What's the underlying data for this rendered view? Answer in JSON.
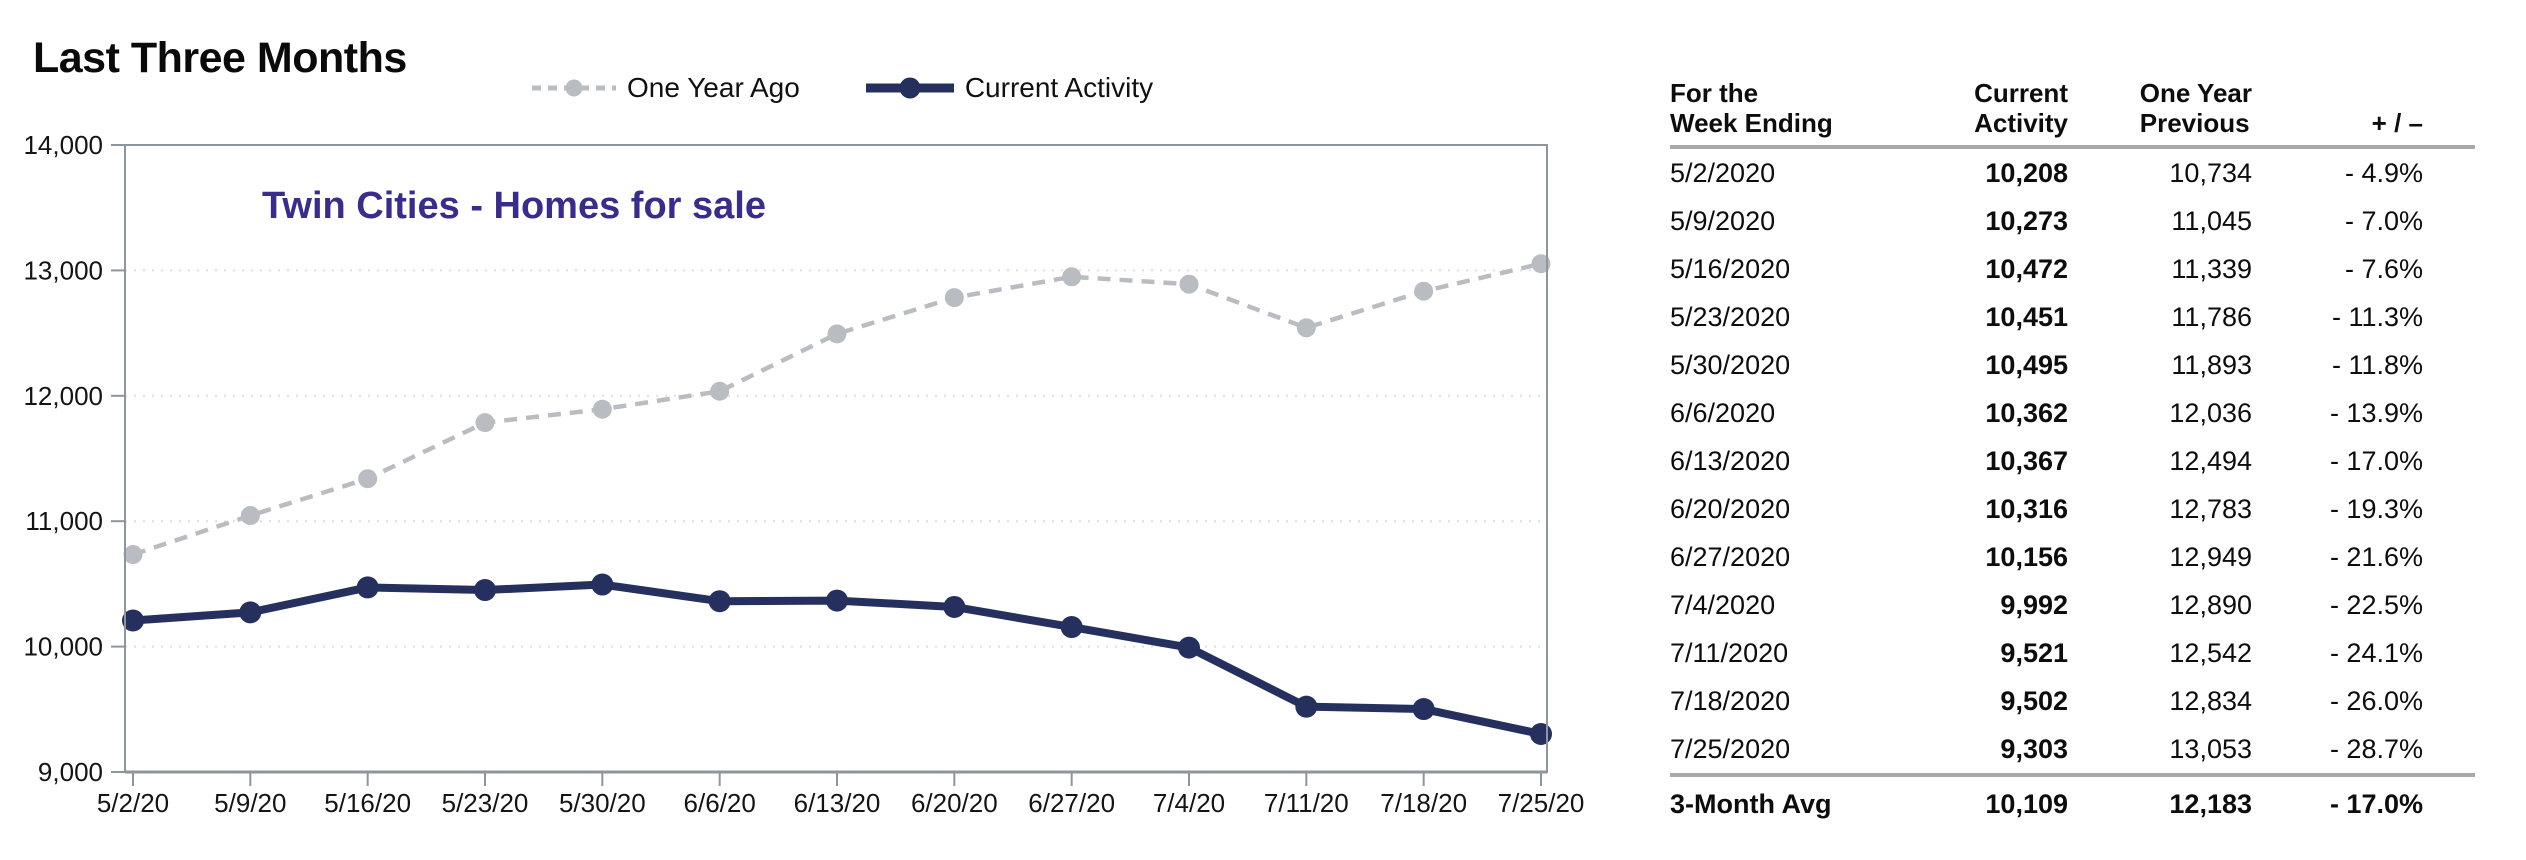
{
  "header": {
    "title": "Last Three Months",
    "legend": [
      {
        "label": "One Year Ago"
      },
      {
        "label": "Current Activity"
      }
    ]
  },
  "chart_data": {
    "type": "line",
    "title": "Last Three Months",
    "subtitle": "Twin Cities - Homes for sale",
    "categories": [
      "5/2/20",
      "5/9/20",
      "5/16/20",
      "5/23/20",
      "5/30/20",
      "6/6/20",
      "6/13/20",
      "6/20/20",
      "6/27/20",
      "7/4/20",
      "7/11/20",
      "7/18/20",
      "7/25/20"
    ],
    "series": [
      {
        "name": "One Year Ago",
        "style": "dashed",
        "color": "#B9BDC2",
        "values": [
          10734,
          11045,
          11339,
          11786,
          11893,
          12036,
          12494,
          12783,
          12949,
          12890,
          12542,
          12834,
          13053
        ]
      },
      {
        "name": "Current Activity",
        "style": "solid",
        "color": "#26305E",
        "values": [
          10208,
          10273,
          10472,
          10451,
          10495,
          10362,
          10367,
          10316,
          10156,
          9992,
          9521,
          9502,
          9303
        ]
      }
    ],
    "ylim": [
      9000,
      14000
    ],
    "ytick_step": 1000,
    "grid": true,
    "legend_position": "top",
    "subtitle_color": "#382C8D",
    "axis_color": "#8E959B",
    "gridline_color": "#DCDFE2"
  },
  "table": {
    "columns": [
      {
        "line1": "For the",
        "line2": "Week Ending"
      },
      {
        "line1": "Current",
        "line2": "Activity"
      },
      {
        "line1": "One Year",
        "line2": "Previous"
      },
      {
        "line1": "",
        "line2": "+ / –"
      }
    ],
    "rows": [
      {
        "date": "5/2/2020",
        "current": "10,208",
        "previous": "10,734",
        "change": "- 4.9%"
      },
      {
        "date": "5/9/2020",
        "current": "10,273",
        "previous": "11,045",
        "change": "- 7.0%"
      },
      {
        "date": "5/16/2020",
        "current": "10,472",
        "previous": "11,339",
        "change": "- 7.6%"
      },
      {
        "date": "5/23/2020",
        "current": "10,451",
        "previous": "11,786",
        "change": "- 11.3%"
      },
      {
        "date": "5/30/2020",
        "current": "10,495",
        "previous": "11,893",
        "change": "- 11.8%"
      },
      {
        "date": "6/6/2020",
        "current": "10,362",
        "previous": "12,036",
        "change": "- 13.9%"
      },
      {
        "date": "6/13/2020",
        "current": "10,367",
        "previous": "12,494",
        "change": "- 17.0%"
      },
      {
        "date": "6/20/2020",
        "current": "10,316",
        "previous": "12,783",
        "change": "- 19.3%"
      },
      {
        "date": "6/27/2020",
        "current": "10,156",
        "previous": "12,949",
        "change": "- 21.6%"
      },
      {
        "date": "7/4/2020",
        "current": "9,992",
        "previous": "12,890",
        "change": "- 22.5%"
      },
      {
        "date": "7/11/2020",
        "current": "9,521",
        "previous": "12,542",
        "change": "- 24.1%"
      },
      {
        "date": "7/18/2020",
        "current": "9,502",
        "previous": "12,834",
        "change": "- 26.0%"
      },
      {
        "date": "7/25/2020",
        "current": "9,303",
        "previous": "13,053",
        "change": "- 28.7%"
      }
    ],
    "footer": {
      "date": "3-Month Avg",
      "current": "10,109",
      "previous": "12,183",
      "change": "- 17.0%"
    }
  }
}
